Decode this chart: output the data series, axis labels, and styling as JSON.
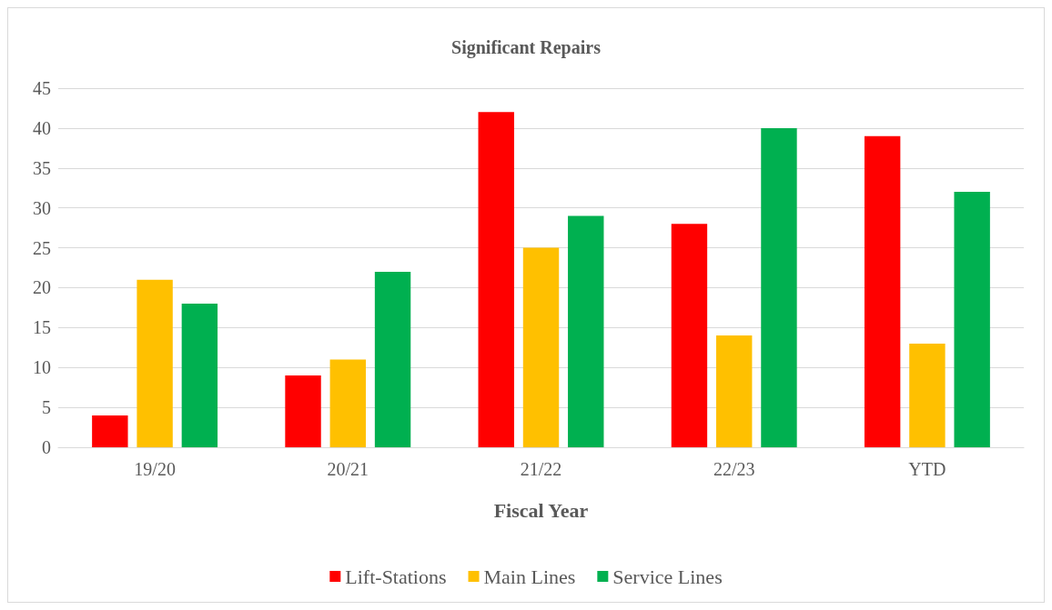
{
  "chart_data": {
    "type": "bar",
    "title": "Significant Repairs",
    "xlabel": "Fiscal Year",
    "categories": [
      "19/20",
      "20/21",
      "21/22",
      "22/23",
      "YTD"
    ],
    "series": [
      {
        "name": "Lift-Stations",
        "color": "#ff0000",
        "values": [
          4,
          9,
          42,
          28,
          39
        ]
      },
      {
        "name": "Main Lines",
        "color": "#ffc000",
        "values": [
          21,
          11,
          25,
          14,
          13
        ]
      },
      {
        "name": "Service Lines",
        "color": "#00b050",
        "values": [
          18,
          22,
          29,
          40,
          32
        ]
      }
    ],
    "ylim": [
      0,
      45
    ],
    "yticks": [
      0,
      5,
      10,
      15,
      20,
      25,
      30,
      35,
      40,
      45
    ],
    "grid": "y",
    "legend": "bottom"
  }
}
